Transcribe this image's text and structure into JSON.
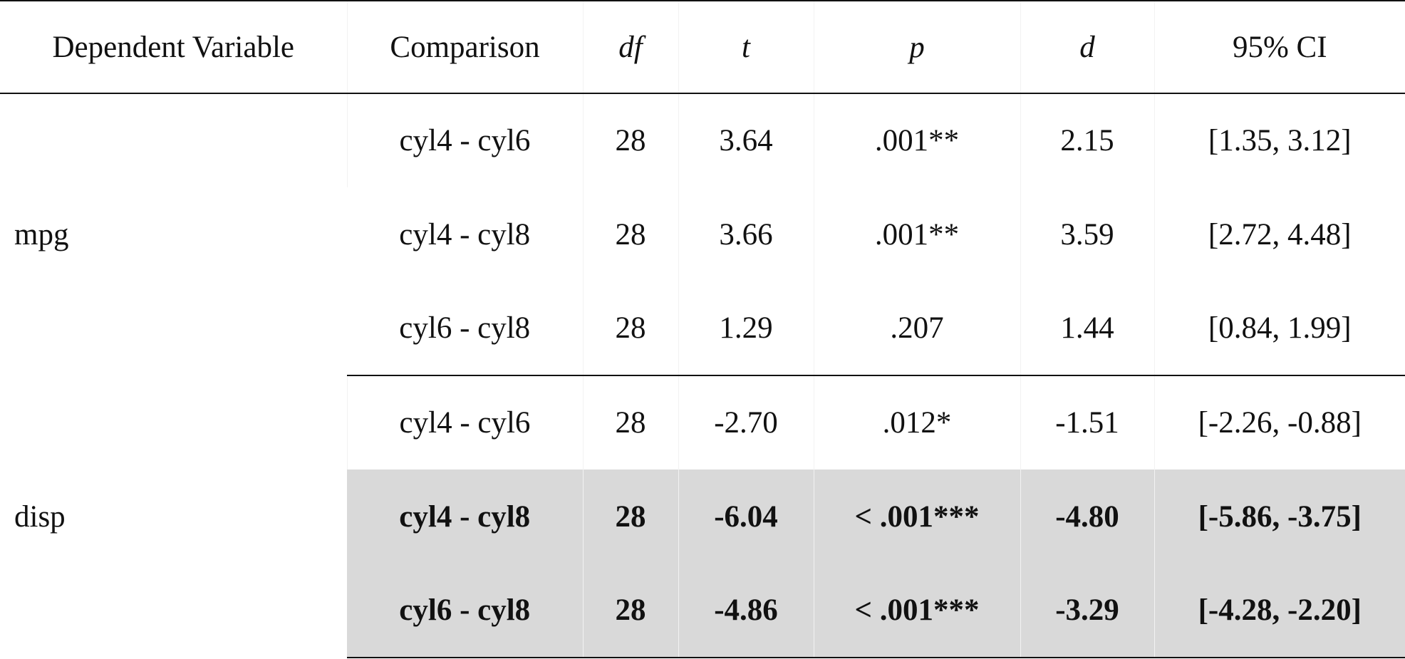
{
  "headers": [
    "Dependent Variable",
    "Comparison",
    "df",
    "t",
    "p",
    "d",
    "95% CI"
  ],
  "header_italic": [
    false,
    false,
    true,
    true,
    true,
    true,
    false
  ],
  "groups": [
    {
      "variable": "mpg",
      "rows": [
        {
          "comparison": "cyl4 - cyl6",
          "df": "28",
          "t": "3.64",
          "p": ".001**",
          "d": "2.15",
          "ci": "[1.35, 3.12]",
          "highlighted": false
        },
        {
          "comparison": "cyl4 - cyl8",
          "df": "28",
          "t": "3.66",
          "p": ".001**",
          "d": "3.59",
          "ci": "[2.72, 4.48]",
          "highlighted": false
        },
        {
          "comparison": "cyl6 - cyl8",
          "df": "28",
          "t": "1.29",
          "p": ".207",
          "d": "1.44",
          "ci": "[0.84, 1.99]",
          "highlighted": false
        }
      ]
    },
    {
      "variable": "disp",
      "rows": [
        {
          "comparison": "cyl4 - cyl6",
          "df": "28",
          "t": "-2.70",
          "p": ".012*",
          "d": "-1.51",
          "ci": "[-2.26, -0.88]",
          "highlighted": false
        },
        {
          "comparison": "cyl4 - cyl8",
          "df": "28",
          "t": "-6.04",
          "p": "< .001***",
          "d": "-4.80",
          "ci": "[-5.86, -3.75]",
          "highlighted": true
        },
        {
          "comparison": "cyl6 - cyl8",
          "df": "28",
          "t": "-4.86",
          "p": "< .001***",
          "d": "-3.29",
          "ci": "[-4.28, -2.20]",
          "highlighted": true
        }
      ]
    }
  ],
  "colors": {
    "highlight": "#d9d9d9",
    "rule": "#111111"
  }
}
